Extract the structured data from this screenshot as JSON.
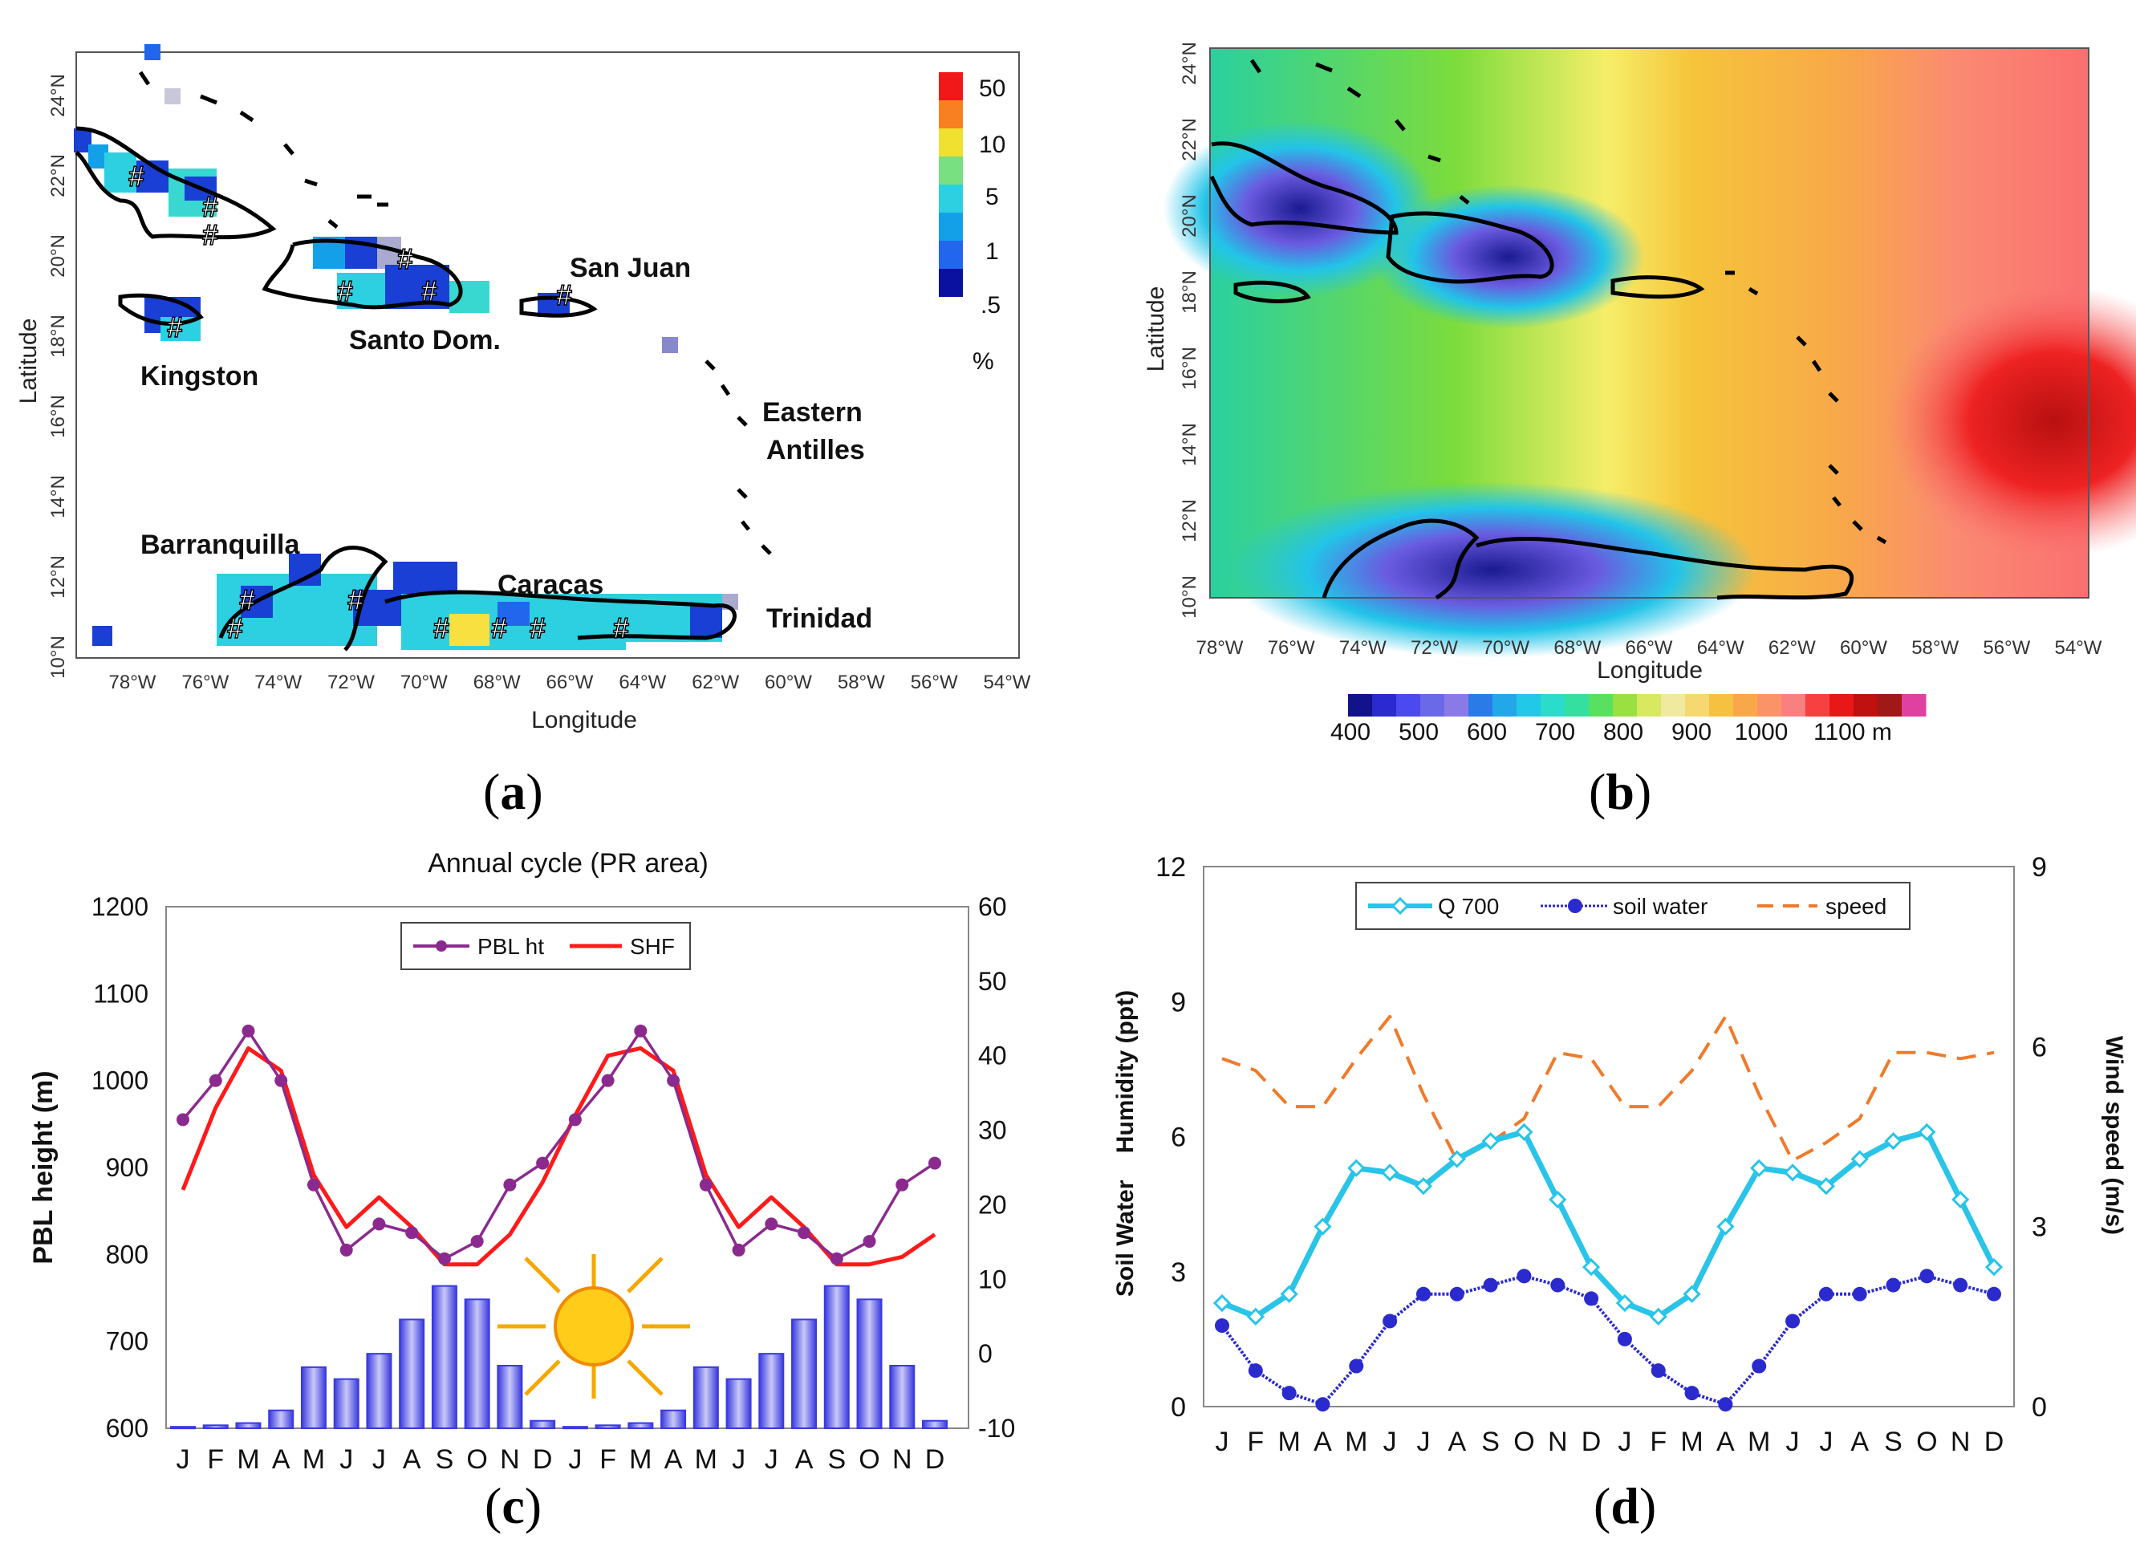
{
  "panels": {
    "a": {
      "label_open": "(",
      "label_letter": "a",
      "label_close": ")"
    },
    "b": {
      "label_open": "(",
      "label_letter": "b",
      "label_close": ")"
    },
    "c": {
      "label_open": "(",
      "label_letter": "c",
      "label_close": ")"
    },
    "d": {
      "label_open": "(",
      "label_letter": "d",
      "label_close": ")"
    }
  },
  "colors": {
    "purple": "#8B2A8E",
    "red": "#FF1A1A",
    "bar": "#3A3AE0",
    "cyan": "#29C4E8",
    "navy": "#2A2ACF",
    "orange": "#F07A2A"
  },
  "chart_data": [
    {
      "id": "a",
      "type": "heatmap",
      "title": "",
      "xlabel": "Longitude",
      "ylabel": "Latitude",
      "xticks": [
        "78°W",
        "76°W",
        "74°W",
        "72°W",
        "70°W",
        "68°W",
        "66°W",
        "64°W",
        "62°W",
        "60°W",
        "58°W",
        "56°W",
        "54°W"
      ],
      "yticks": [
        "24°N",
        "22°N",
        "20°N",
        "18°N",
        "16°N",
        "14°N",
        "12°N",
        "10°N"
      ],
      "colorbar": {
        "labels": [
          "50",
          "10",
          "5",
          "1",
          ".5"
        ],
        "unit": "%"
      },
      "places": [
        "San Juan",
        "Kingston",
        "Santo Dom.",
        "Eastern",
        "Antilles",
        "Barranquilla",
        "Caracas",
        "Trinidad"
      ],
      "marker": "#"
    },
    {
      "id": "b",
      "type": "heatmap",
      "xlabel": "Longitude",
      "ylabel": "Latitude",
      "xticks": [
        "78°W",
        "76°W",
        "74°W",
        "72°W",
        "70°W",
        "68°W",
        "66°W",
        "64°W",
        "62°W",
        "60°W",
        "58°W",
        "56°W",
        "54°W"
      ],
      "yticks": [
        "24°N",
        "22°N",
        "20°N",
        "18°N",
        "16°N",
        "14°N",
        "12°N",
        "10°N"
      ],
      "colorbar": {
        "labels": [
          "400",
          "500",
          "600",
          "700",
          "800",
          "900",
          "1000",
          "1100 m"
        ],
        "range": [
          400,
          1100
        ]
      }
    },
    {
      "id": "c",
      "type": "line",
      "title": "Annual cycle (PR area)",
      "ylabel": "PBL height (m)",
      "categories": [
        "J",
        "F",
        "M",
        "A",
        "M",
        "J",
        "J",
        "A",
        "S",
        "O",
        "N",
        "D",
        "J",
        "F",
        "M",
        "A",
        "M",
        "J",
        "J",
        "A",
        "S",
        "O",
        "N",
        "D"
      ],
      "ylim": [
        600,
        1200
      ],
      "yticks": [
        "1200",
        "1100",
        "1000",
        "900",
        "800",
        "700",
        "600"
      ],
      "y2lim": [
        -10,
        60
      ],
      "y2ticks": [
        "60",
        "50",
        "40",
        "30",
        "20",
        "10",
        "0",
        "-10"
      ],
      "legend": [
        "PBL ht",
        "SHF"
      ],
      "series": [
        {
          "name": "PBL ht",
          "axis": "left",
          "values": [
            955,
            1000,
            1057,
            1000,
            880,
            805,
            835,
            825,
            795,
            815,
            880,
            905,
            955,
            1000,
            1057,
            1000,
            880,
            805,
            835,
            825,
            795,
            815,
            880,
            905
          ]
        },
        {
          "name": "SHF",
          "axis": "right",
          "values": [
            22,
            33,
            41,
            38,
            24,
            17,
            21,
            17,
            12,
            12,
            16,
            23,
            32,
            40,
            41,
            38,
            24,
            17,
            21,
            17,
            12,
            12,
            13,
            16
          ]
        },
        {
          "name": "bars",
          "axis": "right",
          "type": "bar",
          "values": [
            -9.8,
            -9.6,
            -9.3,
            -7.6,
            -1.8,
            -3.4,
            0,
            4.6,
            9.1,
            7.3,
            -1.6,
            -9,
            -9.8,
            -9.6,
            -9.3,
            -7.6,
            -1.8,
            -3.4,
            0,
            4.6,
            9.1,
            7.3,
            -1.6,
            -9
          ]
        }
      ]
    },
    {
      "id": "d",
      "type": "line",
      "ylabel": "Soil Water    Humidity (ppt)",
      "y2label": "Wind speed (m/s)",
      "categories": [
        "J",
        "F",
        "M",
        "A",
        "M",
        "J",
        "J",
        "A",
        "S",
        "O",
        "N",
        "D",
        "J",
        "F",
        "M",
        "A",
        "M",
        "J",
        "J",
        "A",
        "S",
        "O",
        "N",
        "D"
      ],
      "ylim": [
        0,
        12
      ],
      "yticks": [
        "12",
        "9",
        "6",
        "3",
        "0"
      ],
      "y2lim": [
        0,
        9
      ],
      "y2ticks": [
        "9",
        "6",
        "3",
        "0"
      ],
      "legend": [
        "Q 700",
        "soil water",
        "speed"
      ],
      "series": [
        {
          "name": "Q 700",
          "axis": "left",
          "values": [
            2.3,
            2.0,
            2.5,
            4.0,
            5.3,
            5.2,
            4.9,
            5.5,
            5.9,
            6.1,
            4.6,
            3.1,
            2.3,
            2.0,
            2.5,
            4.0,
            5.3,
            5.2,
            4.9,
            5.5,
            5.9,
            6.1,
            4.6,
            3.1
          ]
        },
        {
          "name": "soil water",
          "axis": "left",
          "values": [
            1.8,
            0.8,
            0.3,
            0.05,
            0.9,
            1.9,
            2.5,
            2.5,
            2.7,
            2.9,
            2.7,
            2.4,
            1.5,
            0.8,
            0.3,
            0.05,
            0.9,
            1.9,
            2.5,
            2.5,
            2.7,
            2.9,
            2.7,
            2.5
          ]
        },
        {
          "name": "speed",
          "axis": "right",
          "values": [
            5.8,
            5.6,
            5.0,
            5.0,
            5.8,
            6.5,
            5.2,
            4.1,
            4.4,
            4.8,
            5.9,
            5.8,
            5.0,
            5.0,
            5.6,
            6.5,
            5.2,
            4.1,
            4.4,
            4.8,
            5.9,
            5.9,
            5.8,
            5.9
          ]
        }
      ]
    }
  ]
}
